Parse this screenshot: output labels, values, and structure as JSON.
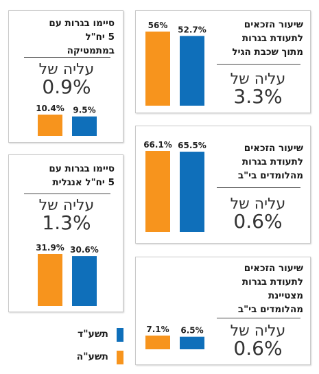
{
  "colors": {
    "orange": "#f7941d",
    "blue": "#0f6fba"
  },
  "legend": [
    {
      "label": "תשע\"ד",
      "color": "#0f6fba"
    },
    {
      "label": "תשע\"ה",
      "color": "#f7941d"
    }
  ],
  "chart_data": [
    {
      "type": "bar",
      "title": "שיעור הזכאים\nלתעודת בגרות\nמתוך שכבת הגיל",
      "rise_label": "עליה של",
      "rise_value": "3.3%",
      "series": [
        {
          "name": "תשע\"ה",
          "value": 56,
          "label": "56%",
          "color": "#f7941d"
        },
        {
          "name": "תשע\"ד",
          "value": 52.7,
          "label": "52.7%",
          "color": "#0f6fba"
        }
      ]
    },
    {
      "type": "bar",
      "title": "שיעור הזכאים\nלתעודת בגרות\nמהלומדים בי\"ב",
      "rise_label": "עליה של",
      "rise_value": "0.6%",
      "series": [
        {
          "name": "תשע\"ה",
          "value": 66.1,
          "label": "66.1%",
          "color": "#f7941d"
        },
        {
          "name": "תשע\"ד",
          "value": 65.5,
          "label": "65.5%",
          "color": "#0f6fba"
        }
      ]
    },
    {
      "type": "bar",
      "title": "שיעור הזכאים\nלתעודת בגרות\nמצטיינת\nמהלומדים בי\"ב",
      "rise_label": "עליה של",
      "rise_value": "0.6%",
      "series": [
        {
          "name": "תשע\"ה",
          "value": 7.1,
          "label": "7.1%",
          "color": "#f7941d"
        },
        {
          "name": "תשע\"ד",
          "value": 6.5,
          "label": "6.5%",
          "color": "#0f6fba"
        }
      ]
    },
    {
      "type": "bar",
      "title": "סיימו בגרות עם\n5 יח\"ל\nבמתמטיקה",
      "rise_label": "עליה של",
      "rise_value": "0.9%",
      "series": [
        {
          "name": "תשע\"ה",
          "value": 10.4,
          "label": "10.4%",
          "color": "#f7941d"
        },
        {
          "name": "תשע\"ד",
          "value": 9.5,
          "label": "9.5%",
          "color": "#0f6fba"
        }
      ]
    },
    {
      "type": "bar",
      "title": "סיימו בגרות עם\n5 יח\"ל אנגלית",
      "rise_label": "עליה של",
      "rise_value": "1.3%",
      "series": [
        {
          "name": "תשע\"ה",
          "value": 31.9,
          "label": "31.9%",
          "color": "#f7941d"
        },
        {
          "name": "תשע\"ד",
          "value": 30.6,
          "label": "30.6%",
          "color": "#0f6fba"
        }
      ]
    }
  ]
}
